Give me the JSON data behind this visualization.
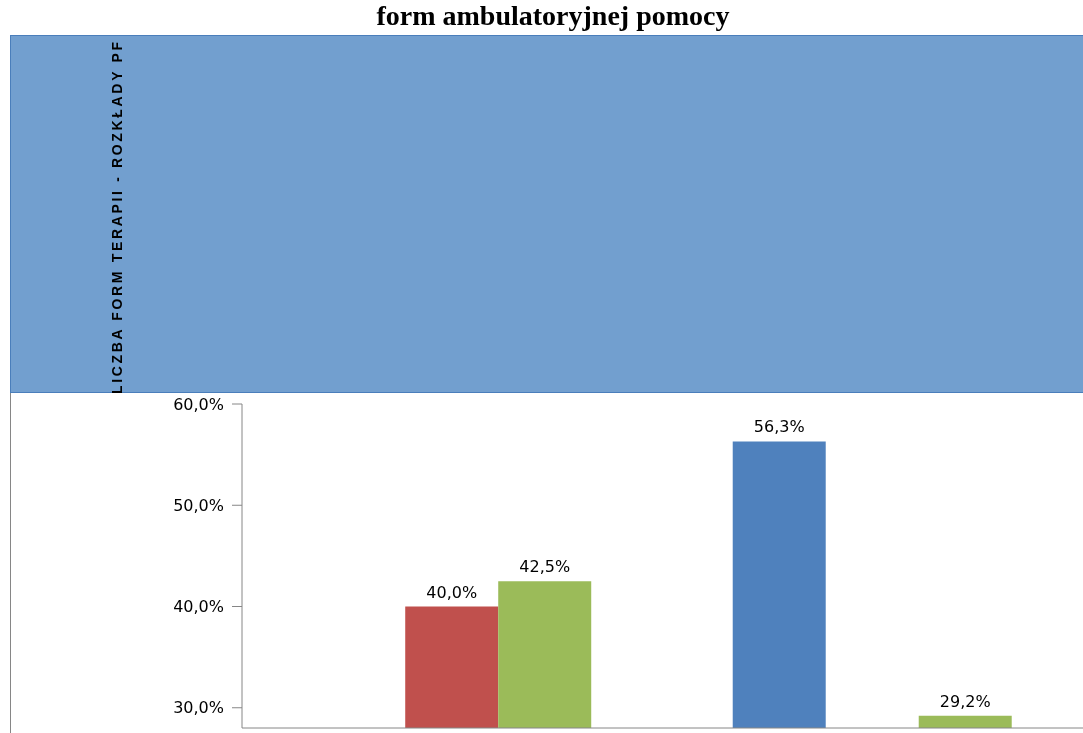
{
  "chart_data": {
    "type": "bar",
    "title": "form ambulatoryjnej pomocy",
    "ylabel": "LICZBA FORM TERAPII - ROZKŁADY PF",
    "categories": [
      null,
      null
    ],
    "series": [
      {
        "color": "#4f81bd",
        "values": [
          null,
          56.3
        ],
        "value_labels": [
          null,
          "56,3%"
        ]
      },
      {
        "color": "#c0504d",
        "values": [
          40.0,
          null
        ],
        "value_labels": [
          "40,0%",
          null
        ]
      },
      {
        "color": "#9bbb59",
        "values": [
          42.5,
          29.2
        ],
        "value_labels": [
          "42,5%",
          "29,2%"
        ]
      }
    ],
    "ylim": [
      28,
      60
    ],
    "yticks": [
      {
        "value": 30,
        "label": "30,0%"
      },
      {
        "value": 40,
        "label": "40,0%"
      },
      {
        "value": 50,
        "label": "50,0%"
      },
      {
        "value": 60,
        "label": "60,0%"
      }
    ]
  }
}
